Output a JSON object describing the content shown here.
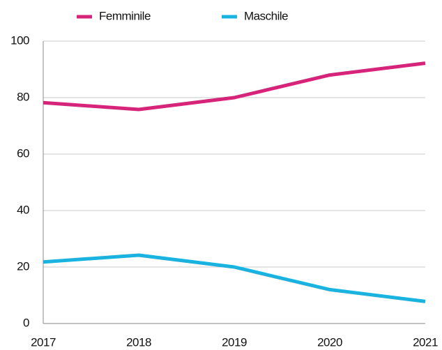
{
  "chart_data": {
    "type": "line",
    "categories": [
      "2017",
      "2018",
      "2019",
      "2020",
      "2021"
    ],
    "series": [
      {
        "name": "Femminile",
        "color": "#d6247a",
        "values": [
          78.2,
          75.8,
          80,
          88,
          92.2
        ]
      },
      {
        "name": "Maschile",
        "color": "#1ab3e0",
        "values": [
          21.8,
          24.2,
          20,
          12,
          7.8
        ]
      }
    ],
    "ylim": [
      0,
      100
    ],
    "yticks": [
      0,
      20,
      40,
      60,
      80,
      100
    ],
    "grid": true,
    "legend": "top"
  }
}
